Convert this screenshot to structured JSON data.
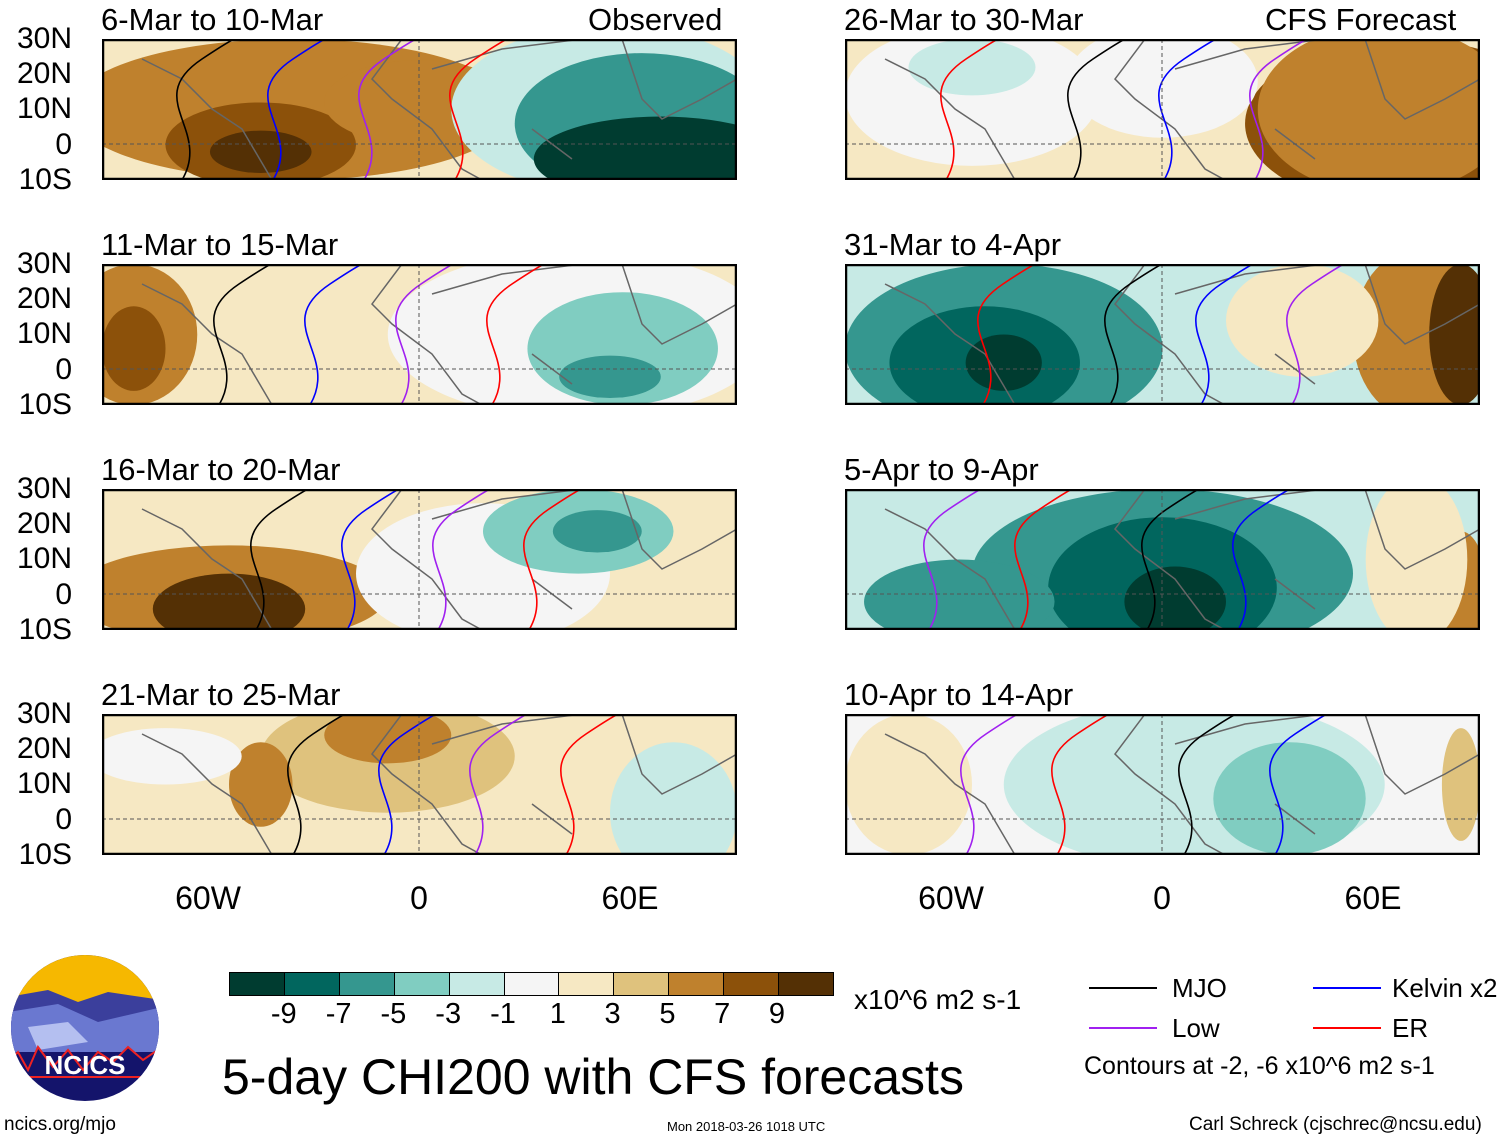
{
  "title": "5-day CHI200 with CFS forecasts",
  "observed_label": "Observed",
  "forecast_label": "CFS Forecast",
  "panels_left": [
    {
      "title": "6-Mar to 10-Mar"
    },
    {
      "title": "11-Mar to 15-Mar"
    },
    {
      "title": "16-Mar to 20-Mar"
    },
    {
      "title": "21-Mar to 25-Mar"
    }
  ],
  "panels_right": [
    {
      "title": "26-Mar to 30-Mar"
    },
    {
      "title": "31-Mar to 4-Apr"
    },
    {
      "title": "5-Apr to 9-Apr"
    },
    {
      "title": "10-Apr to 14-Apr"
    }
  ],
  "lat_labels": [
    "30N",
    "20N",
    "10N",
    "0",
    "10S"
  ],
  "lon_labels": [
    "60W",
    "0",
    "60E"
  ],
  "colorbar": {
    "colors": [
      "#003c30",
      "#01665e",
      "#35978f",
      "#80cdc1",
      "#c7eae5",
      "#f5f5f5",
      "#f6e8c3",
      "#dfc27d",
      "#bf812d",
      "#8c510a",
      "#543005"
    ],
    "labels": [
      "-9",
      "-7",
      "-5",
      "-3",
      "-1",
      "1",
      "3",
      "5",
      "7",
      "9"
    ],
    "units": "x10^6 m2 s-1"
  },
  "legend": [
    {
      "label": "MJO",
      "color": "#000000"
    },
    {
      "label": "Kelvin x2",
      "color": "#0000ff"
    },
    {
      "label": "Low",
      "color": "#a020f0"
    },
    {
      "label": "ER",
      "color": "#ff0000"
    }
  ],
  "contours_note": "Contours at -2, -6 x10^6 m2 s-1",
  "logo_text": "NCICS",
  "website": "ncics.org/mjo",
  "timestamp": "Mon 2018-03-26 1018 UTC",
  "author": "Carl Schreck (cjschrec@ncsu.edu)"
}
